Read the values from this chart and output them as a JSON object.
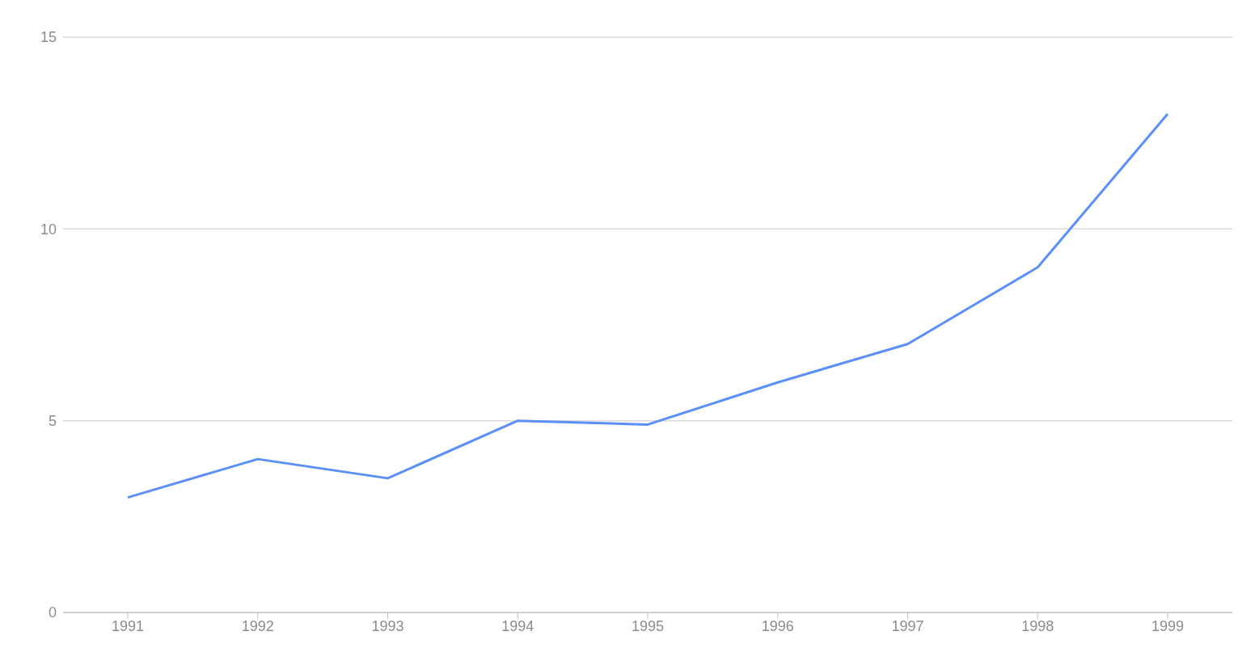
{
  "chart_data": {
    "type": "line",
    "categories": [
      "1991",
      "1992",
      "1993",
      "1994",
      "1995",
      "1996",
      "1997",
      "1998",
      "1999"
    ],
    "series": [
      {
        "color": "#5b8ff9",
        "values": [
          3,
          4,
          3.5,
          5,
          4.9,
          6,
          7,
          9,
          13
        ]
      }
    ],
    "ylim": [
      0,
      15
    ],
    "yticks": [
      0,
      5,
      10,
      15
    ],
    "grid": "y",
    "marker": "none",
    "line_style": "solid"
  }
}
